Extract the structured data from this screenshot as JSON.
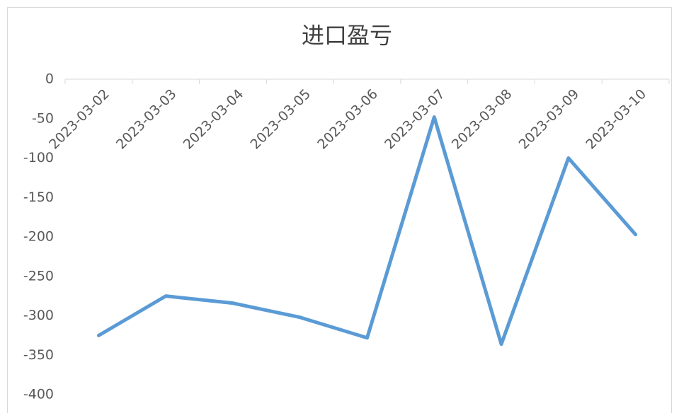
{
  "chart_data": {
    "type": "line",
    "title": "进口盈亏",
    "categories": [
      "2023-03-02",
      "2023-03-03",
      "2023-03-04",
      "2023-03-05",
      "2023-03-06",
      "2023-03-07",
      "2023-03-08",
      "2023-03-09",
      "2023-03-10"
    ],
    "values": [
      -325,
      -275,
      -284,
      -302,
      -328,
      -48,
      -336,
      -100,
      -197
    ],
    "color": "#5b9bd5",
    "ylim": [
      -400,
      0
    ],
    "yticks": [
      0,
      -50,
      -100,
      -150,
      -200,
      -250,
      -300,
      -350,
      -400
    ],
    "grid": false
  }
}
